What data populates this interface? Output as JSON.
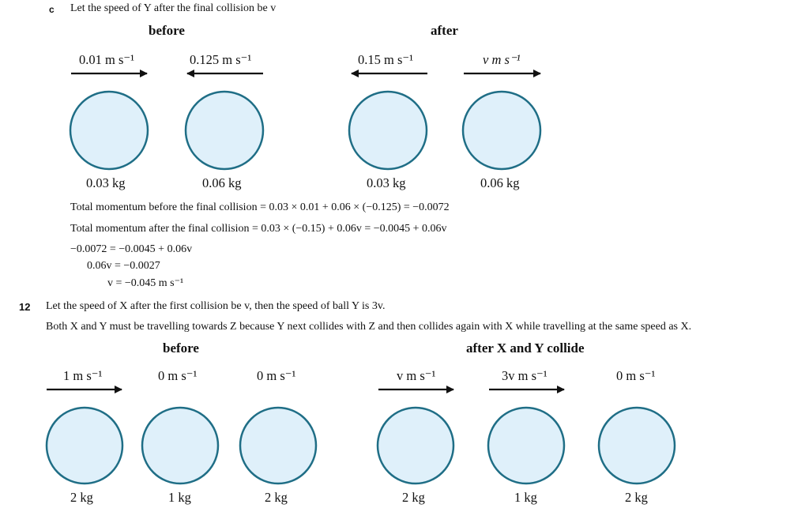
{
  "part_c": {
    "label": "c",
    "intro": "Let the speed of Y after the final collision be v",
    "before_heading": "before",
    "after_heading": "after",
    "before_speeds": [
      "0.01 m s⁻¹",
      "0.125 m s⁻¹"
    ],
    "after_speeds": [
      "0.15 m s⁻¹",
      "v m s⁻¹"
    ],
    "masses": [
      "0.03 kg",
      "0.06 kg",
      "0.03 kg",
      "0.06 kg"
    ],
    "ball_color": "#dff0fa",
    "ball_outline": "#1f6e86",
    "eq1": "Total momentum before the final collision = 0.03 × 0.01 + 0.06 × (−0.125) = −0.0072",
    "eq2": "Total momentum after the final collision = 0.03 × (−0.15) + 0.06v = −0.0045 + 0.06v",
    "step1": "−0.0072 = −0.0045 + 0.06v",
    "step2": "0.06v = −0.0027",
    "step3": "v = −0.045 m s⁻¹"
  },
  "q12": {
    "number": "12",
    "line1": "Let the speed of X after the first collision be v, then the speed of ball Y is 3v.",
    "line2": "Both X and Y must be travelling towards Z because Y next collides with Z and then collides again with X while travelling at the same speed as X.",
    "before_heading": "before",
    "after_heading": "after X and Y collide",
    "before_speeds": [
      "1 m s⁻¹",
      "0 m s⁻¹",
      "0 m s⁻¹"
    ],
    "after_speeds": [
      "v m s⁻¹",
      "3v m s⁻¹",
      "0 m s⁻¹"
    ],
    "masses": [
      "2 kg",
      "1 kg",
      "2 kg",
      "2 kg",
      "1 kg",
      "2 kg"
    ]
  }
}
